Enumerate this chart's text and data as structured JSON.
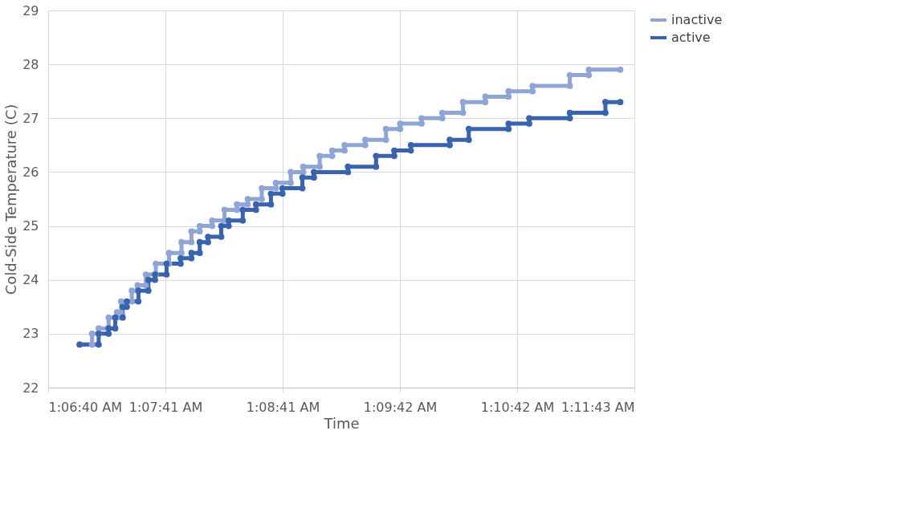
{
  "chart_data": {
    "type": "line",
    "xlabel": "Time",
    "ylabel": "Cold-Side Temperature (C)",
    "xlim": [
      1.111111,
      1.195278
    ],
    "xticks": [
      {
        "value": 1.111111,
        "label": "1:06:40 AM"
      },
      {
        "value": 1.127944,
        "label": "1:07:41 AM"
      },
      {
        "value": 1.144778,
        "label": "1:08:41 AM"
      },
      {
        "value": 1.161611,
        "label": "1:09:42 AM"
      },
      {
        "value": 1.178444,
        "label": "1:10:42 AM"
      },
      {
        "value": 1.195278,
        "label": "1:11:43 AM"
      }
    ],
    "ylim": [
      22,
      29
    ],
    "yticks": [
      22,
      23,
      24,
      25,
      26,
      27,
      28,
      29
    ],
    "grid": true,
    "legend": "right",
    "marker": "circle",
    "line_style": "solid",
    "series": [
      {
        "name": "inactive",
        "color": "#8fa5d6",
        "x": [
          1.11563,
          1.11741,
          1.11741,
          1.11836,
          1.11836,
          1.11979,
          1.11979,
          1.12098,
          1.12098,
          1.12157,
          1.12157,
          1.12312,
          1.12312,
          1.12395,
          1.12395,
          1.12514,
          1.12514,
          1.12657,
          1.12657,
          1.12847,
          1.12847,
          1.13025,
          1.13025,
          1.13168,
          1.13168,
          1.13287,
          1.13287,
          1.13465,
          1.13465,
          1.13643,
          1.13643,
          1.13822,
          1.13822,
          1.13976,
          1.13976,
          1.14178,
          1.14178,
          1.1438,
          1.1438,
          1.14594,
          1.14594,
          1.14773,
          1.14773,
          1.1501,
          1.1501,
          1.15189,
          1.15189,
          1.15367,
          1.15367,
          1.15664,
          1.15664,
          1.15961,
          1.15961,
          1.16164,
          1.16164,
          1.16473,
          1.16473,
          1.1677,
          1.1677,
          1.17067,
          1.17067,
          1.17388,
          1.17388,
          1.17721,
          1.17721,
          1.18066,
          1.18066,
          1.18601,
          1.18601,
          1.18874,
          1.18874,
          1.19326
        ],
        "values": [
          22.8,
          22.8,
          23.0,
          23.0,
          23.1,
          23.1,
          23.3,
          23.3,
          23.4,
          23.4,
          23.6,
          23.6,
          23.8,
          23.8,
          23.9,
          23.9,
          24.1,
          24.1,
          24.3,
          24.3,
          24.5,
          24.5,
          24.7,
          24.7,
          24.9,
          24.9,
          25.0,
          25.0,
          25.1,
          25.1,
          25.3,
          25.3,
          25.4,
          25.4,
          25.5,
          25.5,
          25.7,
          25.7,
          25.8,
          25.8,
          26.0,
          26.0,
          26.1,
          26.1,
          26.3,
          26.3,
          26.4,
          26.4,
          26.5,
          26.5,
          26.6,
          26.6,
          26.8,
          26.8,
          26.9,
          26.9,
          27.0,
          27.0,
          27.1,
          27.1,
          27.3,
          27.3,
          27.4,
          27.4,
          27.5,
          27.5,
          27.6,
          27.6,
          27.8,
          27.8,
          27.9,
          27.9
        ]
      },
      {
        "name": "active",
        "color": "#3a63ad",
        "x": [
          1.11563,
          1.11836,
          1.11836,
          1.11979,
          1.11979,
          1.12074,
          1.12074,
          1.12181,
          1.12181,
          1.1224,
          1.1224,
          1.12407,
          1.12407,
          1.1255,
          1.1255,
          1.12645,
          1.12645,
          1.12811,
          1.12811,
          1.13013,
          1.13013,
          1.13168,
          1.13168,
          1.13287,
          1.13287,
          1.13406,
          1.13406,
          1.13596,
          1.13596,
          1.13703,
          1.13703,
          1.13905,
          1.13905,
          1.14095,
          1.14095,
          1.14309,
          1.14309,
          1.14475,
          1.14475,
          1.14761,
          1.14761,
          1.14927,
          1.14927,
          1.15415,
          1.15415,
          1.15819,
          1.15819,
          1.1608,
          1.1608,
          1.16318,
          1.16318,
          1.16877,
          1.16877,
          1.1715,
          1.1715,
          1.17721,
          1.17721,
          1.18018,
          1.18018,
          1.18601,
          1.18601,
          1.19112,
          1.19112,
          1.19326
        ],
        "values": [
          22.8,
          22.8,
          23.0,
          23.0,
          23.1,
          23.1,
          23.3,
          23.3,
          23.5,
          23.5,
          23.6,
          23.6,
          23.8,
          23.8,
          24.0,
          24.0,
          24.1,
          24.1,
          24.3,
          24.3,
          24.4,
          24.4,
          24.5,
          24.5,
          24.7,
          24.7,
          24.8,
          24.8,
          25.0,
          25.0,
          25.1,
          25.1,
          25.3,
          25.3,
          25.4,
          25.4,
          25.6,
          25.6,
          25.7,
          25.7,
          25.9,
          25.9,
          26.0,
          26.0,
          26.1,
          26.1,
          26.3,
          26.3,
          26.4,
          26.4,
          26.5,
          26.5,
          26.6,
          26.6,
          26.8,
          26.8,
          26.9,
          26.9,
          27.0,
          27.0,
          27.1,
          27.1,
          27.3,
          27.3
        ]
      }
    ]
  }
}
